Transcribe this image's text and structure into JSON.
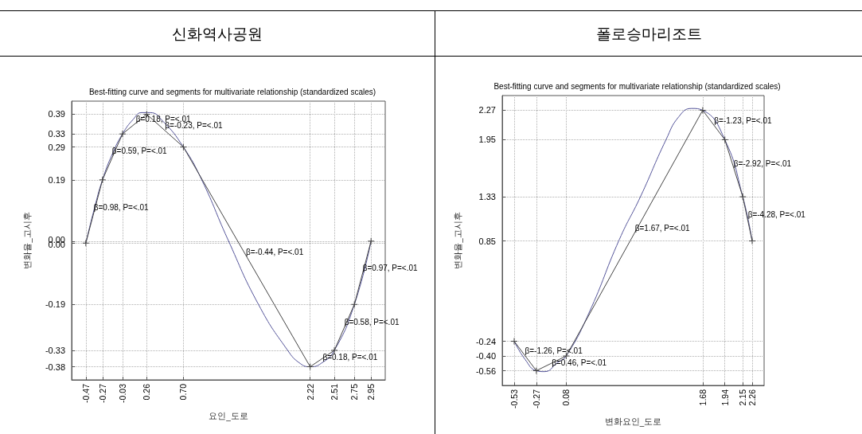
{
  "chart_data": [
    {
      "type": "line",
      "title": "신화역사공원",
      "subtitle": "Best-fitting curve and segments for multivariate relationship (standardized scales)",
      "xlabel": "요인_도로",
      "ylabel": "변화율_고시후",
      "grid": true,
      "marker": "cross",
      "line_style": "solid",
      "xlim": [
        -0.64,
        3.12
      ],
      "xticks": [
        -0.47,
        -0.27,
        -0.03,
        0.26,
        {
          "value": 0.7,
          "label": "0.70"
        },
        2.22,
        2.51,
        2.75,
        2.95
      ],
      "ylim": [
        -0.42,
        0.43
      ],
      "yticks": [
        -0.38,
        -0.33,
        -0.19,
        {
          "value": -0.003,
          "label": "0.00"
        },
        {
          "value": 0.003,
          "label": "0.00"
        },
        0.19,
        0.29,
        0.33,
        0.39
      ],
      "series": [
        {
          "color": "#55559a",
          "marker": "none",
          "x": [
            -0.47,
            -0.37,
            -0.27,
            -0.15,
            -0.03,
            0.1,
            0.2,
            0.3,
            0.45,
            0.7,
            0.92,
            1.23,
            1.6,
            1.95,
            2.1,
            2.22,
            2.35,
            2.51,
            2.75,
            2.95
          ],
          "values": [
            -0.003,
            0.1,
            0.19,
            0.27,
            0.33,
            0.375,
            0.395,
            0.395,
            0.37,
            0.29,
            0.19,
            0.01,
            -0.19,
            -0.33,
            -0.37,
            -0.38,
            -0.37,
            -0.33,
            -0.19,
            0.003
          ]
        },
        {
          "color": "#444444",
          "x": [
            -0.47,
            -0.27,
            -0.03,
            0.26,
            0.7,
            2.22,
            2.51,
            2.75,
            2.95
          ],
          "values": [
            -0.003,
            0.19,
            0.33,
            0.39,
            0.29,
            -0.38,
            -0.33,
            -0.19,
            0.003
          ]
        }
      ],
      "annotations": [
        {
          "text": "β=0.98, P=<.01",
          "x": -0.375,
          "y": 0.106
        },
        {
          "text": "β=0.59, P=<.01",
          "x": -0.155,
          "y": 0.279
        },
        {
          "text": "β=0.18, P=<.01",
          "x": 0.13,
          "y": 0.375
        },
        {
          "text": "β=-0.23, P=<.01",
          "x": 0.48,
          "y": 0.355
        },
        {
          "text": "β=-0.44, P=<.01",
          "x": 1.45,
          "y": -0.03
        },
        {
          "text": "β=0.97, P=<.01",
          "x": 2.85,
          "y": -0.079
        },
        {
          "text": "β=0.58, P=<.01",
          "x": 2.63,
          "y": -0.243
        },
        {
          "text": "β=0.18, P=<.01",
          "x": 2.37,
          "y": -0.35
        }
      ]
    },
    {
      "type": "line",
      "title": "폴로승마리조트",
      "subtitle": "Best-fitting curve and segments for multivariate relationship (standardized scales)",
      "xlabel": "변화요인_도로",
      "ylabel": "변화율_고시후",
      "grid": true,
      "marker": "cross",
      "line_style": "solid",
      "xlim": [
        -0.67,
        2.4
      ],
      "xticks": [
        -0.53,
        -0.27,
        0.08,
        1.68,
        1.94,
        2.15,
        2.26
      ],
      "ylim": [
        -0.72,
        2.43
      ],
      "yticks": [
        -0.56,
        {
          "value": -0.4,
          "label": "-0.40"
        },
        -0.24,
        0.85,
        1.33,
        1.95,
        2.27
      ],
      "series": [
        {
          "color": "#55559a",
          "marker": "none",
          "x": [
            -0.53,
            -0.4,
            -0.27,
            -0.175,
            -0.02,
            0.08,
            0.343,
            0.705,
            0.95,
            1.25,
            1.4,
            1.55,
            1.68,
            1.94,
            2.15,
            2.26
          ],
          "values": [
            -0.24,
            -0.44,
            -0.56,
            -0.57,
            -0.47,
            -0.4,
            0.06,
            0.87,
            1.33,
            1.95,
            2.2,
            2.29,
            2.27,
            1.95,
            1.33,
            0.85
          ]
        },
        {
          "color": "#444444",
          "x": [
            -0.53,
            -0.27,
            0.08,
            1.68,
            1.94,
            2.15,
            2.26
          ],
          "values": [
            -0.24,
            -0.56,
            -0.4,
            2.27,
            1.95,
            1.33,
            0.85
          ]
        }
      ],
      "annotations": [
        {
          "text": "β=-1.23, P=<.01",
          "x": 1.815,
          "y": 2.16
        },
        {
          "text": "β=-2.92, P=<.01",
          "x": 2.044,
          "y": 1.69
        },
        {
          "text": "β=-4.28, P=<.01",
          "x": 2.21,
          "y": 1.14
        },
        {
          "text": "β=1.67, P=<.01",
          "x": 0.886,
          "y": 0.985
        },
        {
          "text": "β=-1.26, P=<.01",
          "x": -0.404,
          "y": -0.34
        },
        {
          "text": "β=0.46, P=<.01",
          "x": -0.09,
          "y": -0.47
        }
      ]
    }
  ]
}
